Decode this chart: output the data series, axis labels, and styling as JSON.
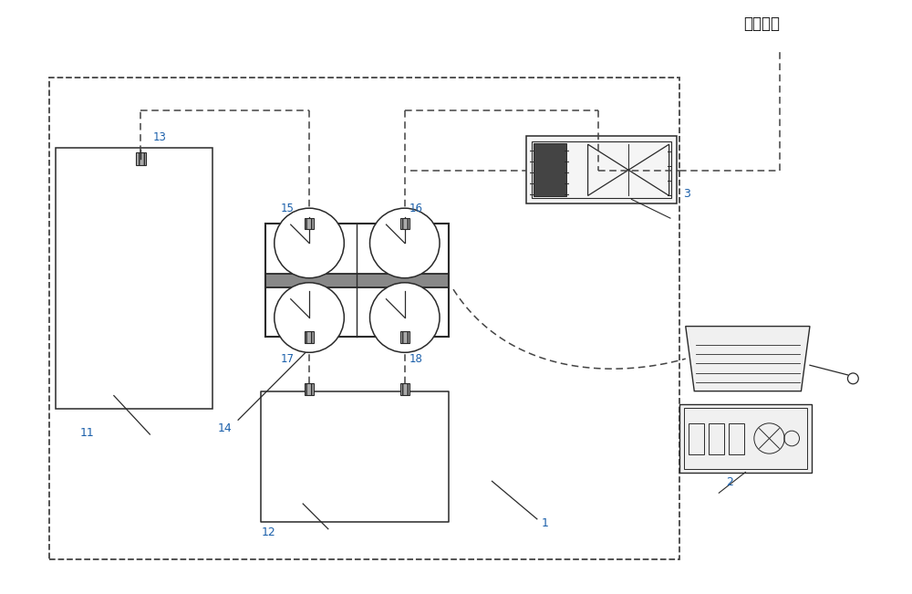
{
  "title": "接至室外",
  "bg_color": "#ffffff",
  "line_color": "#2a2a2a",
  "dashed_color": "#444444",
  "label_color": "#1a5faa",
  "fig_width": 10.0,
  "fig_height": 6.51,
  "dpi": 100
}
